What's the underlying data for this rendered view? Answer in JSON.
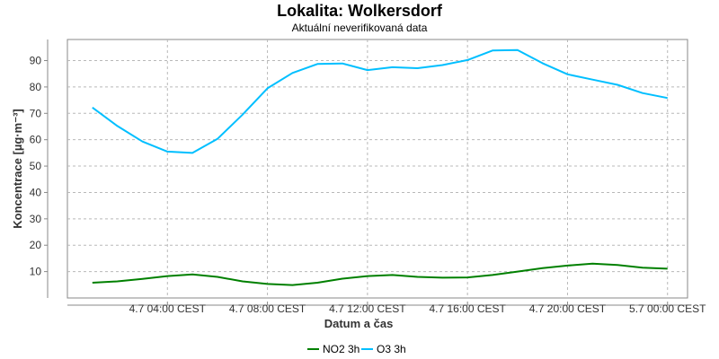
{
  "chart_data": {
    "type": "line",
    "title": "Lokalita: Wolkersdorf",
    "subtitle": "Aktuální neverifikovaná data",
    "xlabel": "Datum a čas",
    "ylabel": "Koncentrace [µg·m⁻³]",
    "x_hours": [
      1,
      2,
      3,
      4,
      5,
      6,
      7,
      8,
      9,
      10,
      11,
      12,
      13,
      14,
      15,
      16,
      17,
      18,
      19,
      20,
      21,
      22,
      23,
      24
    ],
    "xlim": [
      0,
      24.8
    ],
    "ylim": [
      0,
      98
    ],
    "x_ticks": [
      {
        "x": 4,
        "label": "4.7 04:00 CEST"
      },
      {
        "x": 8,
        "label": "4.7 08:00 CEST"
      },
      {
        "x": 12,
        "label": "4.7 12:00 CEST"
      },
      {
        "x": 16,
        "label": "4.7 16:00 CEST"
      },
      {
        "x": 20,
        "label": "4.7 20:00 CEST"
      },
      {
        "x": 24,
        "label": "5.7 00:00 CEST"
      }
    ],
    "y_ticks": [
      10,
      20,
      30,
      40,
      50,
      60,
      70,
      80,
      90
    ],
    "grid": true,
    "legend_position": "bottom-center",
    "series": [
      {
        "name": "NO2 3h",
        "color": "#008000",
        "values": [
          5.8,
          6.3,
          7.2,
          8.3,
          8.9,
          8.0,
          6.3,
          5.3,
          4.9,
          5.8,
          7.3,
          8.3,
          8.7,
          8.0,
          7.7,
          7.8,
          8.7,
          10.0,
          11.3,
          12.3,
          13.0,
          12.5,
          11.5,
          11.1
        ]
      },
      {
        "name": "O3 3h",
        "color": "#00bfff",
        "values": [
          72.2,
          65.2,
          59.3,
          55.5,
          55.0,
          60.3,
          69.5,
          79.5,
          85.3,
          88.7,
          88.9,
          86.4,
          87.5,
          87.1,
          88.3,
          90.2,
          93.8,
          94.0,
          89.0,
          84.8,
          82.8,
          80.8,
          77.7,
          75.8
        ]
      }
    ]
  }
}
